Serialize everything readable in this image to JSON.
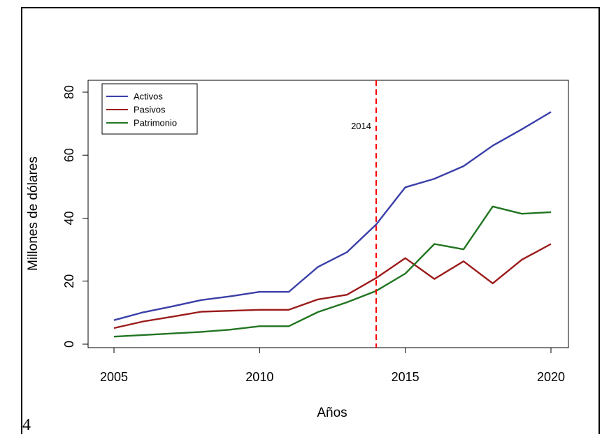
{
  "chart_data": {
    "type": "line",
    "xlabel": "Años",
    "ylabel": "Millones de dólares",
    "xlim": [
      2005,
      2020
    ],
    "ylim": [
      0,
      80
    ],
    "x_ticks": [
      "2005",
      "2010",
      "2015",
      "2020"
    ],
    "y_ticks": [
      "0",
      "20",
      "40",
      "60",
      "80"
    ],
    "x": [
      2005,
      2006,
      2007,
      2008,
      2009,
      2010,
      2011,
      2012,
      2013,
      2014,
      2015,
      2016,
      2017,
      2018,
      2019,
      2020
    ],
    "series": [
      {
        "name": "Activos",
        "color": "#3a3fa8",
        "values": [
          7.6,
          10.1,
          12.0,
          14.0,
          15.2,
          16.6,
          16.6,
          24.5,
          29.2,
          38.0,
          49.8,
          52.5,
          56.5,
          63.0,
          68.2,
          73.7
        ]
      },
      {
        "name": "Pasivos",
        "color": "#9b1b1b",
        "values": [
          5.1,
          7.2,
          8.7,
          10.3,
          10.6,
          10.9,
          10.9,
          14.2,
          15.7,
          21.0,
          27.3,
          20.7,
          26.3,
          19.3,
          26.8,
          31.8
        ]
      },
      {
        "name": "Patrimonio",
        "color": "#217521",
        "values": [
          2.4,
          2.9,
          3.4,
          3.9,
          4.6,
          5.7,
          5.7,
          10.2,
          13.3,
          16.9,
          22.4,
          31.8,
          30.1,
          43.7,
          41.4,
          41.9
        ]
      }
    ],
    "vline": {
      "x": 2014,
      "label": "2014",
      "color": "#ff0000",
      "style": "dashed"
    },
    "legend_position": "top-left",
    "grid": false
  },
  "page": {
    "stray_text": "4"
  }
}
